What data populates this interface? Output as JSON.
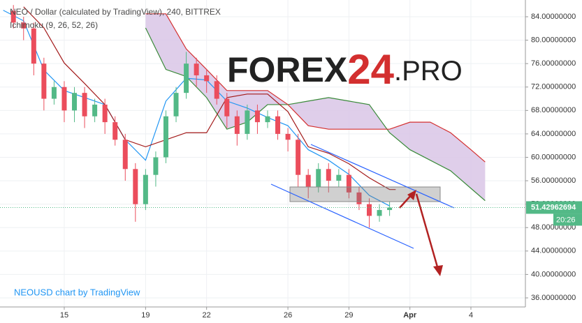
{
  "chart_data": {
    "type": "candlestick",
    "title": "NEO / Dollar (calculated by TradingView), 240, BITTREX",
    "indicator": "Ichimoku (9, 26, 52, 26)",
    "watermark": "NEOUSD chart by TradingView",
    "logo": [
      "FOREX",
      "24",
      ".PRO"
    ],
    "xlim": [
      11.84,
      37.68
    ],
    "ylim": [
      34.45,
      86.86
    ],
    "xticks": [
      15,
      19,
      22,
      26,
      29,
      {
        "value": 32,
        "label": "Apr"
      },
      {
        "value": 35,
        "label": "4"
      }
    ],
    "yticks": [
      {
        "value": 84,
        "label": "84.00000000"
      },
      {
        "value": 80,
        "label": "80.00000000"
      },
      {
        "value": 76,
        "label": "76.00000000"
      },
      {
        "value": 72,
        "label": "72.00000000"
      },
      {
        "value": 68,
        "label": "68.00000000"
      },
      {
        "value": 64,
        "label": "64.00000000"
      },
      {
        "value": 60,
        "label": "60.00000000"
      },
      {
        "value": 56,
        "label": "56.00000000"
      },
      {
        "value": 52,
        "label": "52.00000000"
      },
      {
        "value": 48,
        "label": "48.00000000"
      },
      {
        "value": 44,
        "label": "44.00000000"
      },
      {
        "value": 40,
        "label": "40.00000000"
      },
      {
        "value": 36,
        "label": "36.00000000"
      }
    ],
    "up_color": "#53b987",
    "down_color": "#eb4d5c",
    "x": [
      12.5,
      13,
      13.5,
      14,
      14.5,
      15,
      15.5,
      16,
      16.5,
      17,
      17.5,
      18,
      18.5,
      19,
      19.5,
      20,
      20.5,
      21,
      21.5,
      22,
      22.5,
      23,
      23.5,
      24,
      24.5,
      25,
      25.5,
      26,
      26.5,
      27,
      27.5,
      28,
      28.5,
      29,
      29.5,
      30,
      30.5,
      31
    ],
    "open": [
      85,
      83,
      82,
      76,
      70,
      72,
      68,
      71,
      67,
      69,
      66,
      63,
      58,
      52,
      57,
      60,
      67,
      71,
      76,
      74,
      73,
      70,
      67,
      64,
      68,
      66,
      67,
      64,
      63,
      57,
      55,
      58,
      56,
      57,
      54,
      52,
      50,
      51
    ],
    "high": [
      86,
      84,
      83,
      77,
      73,
      73,
      72,
      72,
      70,
      70,
      67,
      64,
      59,
      58,
      61,
      68,
      72,
      78,
      77,
      75,
      74,
      71,
      68,
      69,
      69,
      68,
      68,
      65,
      64,
      58,
      59,
      59,
      58,
      58,
      55,
      53,
      52,
      52.5
    ],
    "low": [
      82,
      80,
      74,
      68,
      69,
      66,
      66,
      65,
      66,
      64,
      62,
      56,
      49,
      51,
      55,
      59,
      66,
      70,
      72,
      71,
      69,
      65,
      62,
      63,
      64,
      65,
      63,
      61,
      55,
      53,
      54,
      54,
      55,
      53,
      51,
      48,
      49,
      50
    ],
    "close": [
      83,
      82,
      76,
      70,
      72,
      68,
      71,
      67,
      69,
      66,
      63,
      58,
      52,
      57,
      60,
      67,
      71,
      76,
      74,
      73,
      70,
      67,
      64,
      68,
      66,
      67,
      64,
      63,
      57,
      55,
      58,
      56,
      57,
      54,
      52,
      50,
      51,
      51.4
    ],
    "overlays": [
      {
        "color": "#2196f3",
        "x": [
          12,
          13,
          14,
          15,
          16,
          17,
          18,
          19,
          20,
          21,
          22,
          23,
          24,
          25,
          26,
          27,
          28,
          29,
          30,
          31
        ],
        "values": [
          85.1,
          83.3,
          74.9,
          71.4,
          70.2,
          69,
          63,
          59.5,
          69.6,
          73.5,
          73.2,
          69.6,
          68.4,
          66.8,
          65.4,
          61.3,
          59.5,
          57.1,
          53.5,
          51.7
        ]
      },
      {
        "color": "#a31a1a",
        "x": [
          13,
          14,
          15,
          16,
          17,
          18,
          19,
          20,
          21,
          22,
          23,
          24,
          25,
          26,
          27,
          28,
          29,
          30,
          31,
          31.3
        ],
        "values": [
          85.7,
          82.1,
          76.1,
          72.6,
          69,
          63,
          61.8,
          63,
          64.2,
          64.2,
          70.2,
          70.8,
          70.8,
          67.8,
          61.8,
          60.7,
          58.9,
          56.5,
          54.5,
          54.5
        ]
      }
    ],
    "cloud": {
      "x": [
        19,
        20,
        21,
        22,
        23,
        24,
        25,
        26,
        27,
        28,
        29,
        30,
        31,
        32,
        33,
        34,
        35,
        35.7
      ],
      "span_a": [
        82.1,
        75,
        73.8,
        70.2,
        64.8,
        66,
        69,
        69,
        69.6,
        70.2,
        69.6,
        69,
        64.2,
        61.3,
        59.5,
        57.7,
        54.7,
        52.6
      ],
      "span_b": [
        84.5,
        84.5,
        78.5,
        75,
        71.4,
        71.4,
        71.4,
        69,
        65.4,
        64.8,
        64.8,
        64.8,
        64.8,
        66,
        66,
        64.2,
        61.3,
        59.2
      ],
      "span_a_color": "#3a8a3a",
      "span_b_color": "#d32f2f",
      "fill": "#d9c6e6"
    },
    "last_price": 51.42962694,
    "last_price_color": "#53b987",
    "countdown": "20:26"
  }
}
